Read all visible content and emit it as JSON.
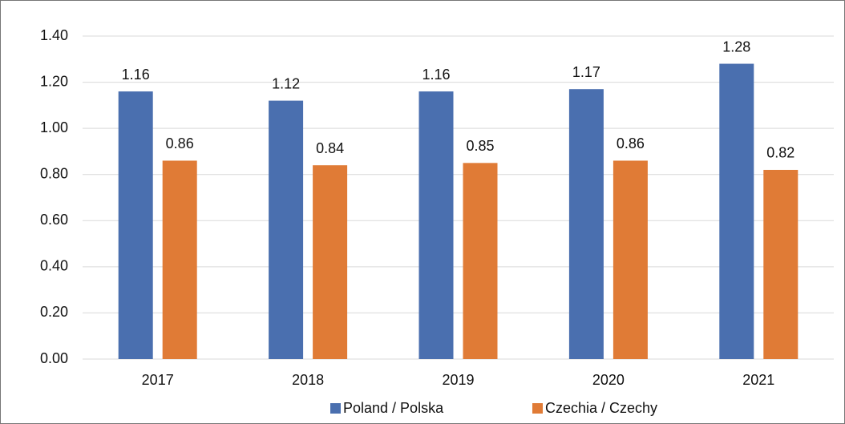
{
  "chart_data": {
    "type": "bar",
    "categories": [
      "2017",
      "2018",
      "2019",
      "2020",
      "2021"
    ],
    "series": [
      {
        "name": "Poland / Polska",
        "color": "#4a6faf",
        "values": [
          1.16,
          1.12,
          1.16,
          1.17,
          1.28
        ]
      },
      {
        "name": "Czechia / Czechy",
        "color": "#e07b36",
        "values": [
          0.86,
          0.84,
          0.85,
          0.86,
          0.82
        ]
      }
    ],
    "ylim": [
      0,
      1.4
    ],
    "yticks": [
      {
        "value": 0,
        "label": "0.00"
      },
      {
        "value": 0.2,
        "label": "0.20"
      },
      {
        "value": 0.4,
        "label": "0.40"
      },
      {
        "value": 0.6,
        "label": "0.60"
      },
      {
        "value": 0.8,
        "label": "0.80"
      },
      {
        "value": 1.0,
        "label": "1.00"
      },
      {
        "value": 1.2,
        "label": "1.20"
      },
      {
        "value": 1.4,
        "label": "1.40"
      }
    ],
    "grid": true,
    "legend": "bottom"
  }
}
